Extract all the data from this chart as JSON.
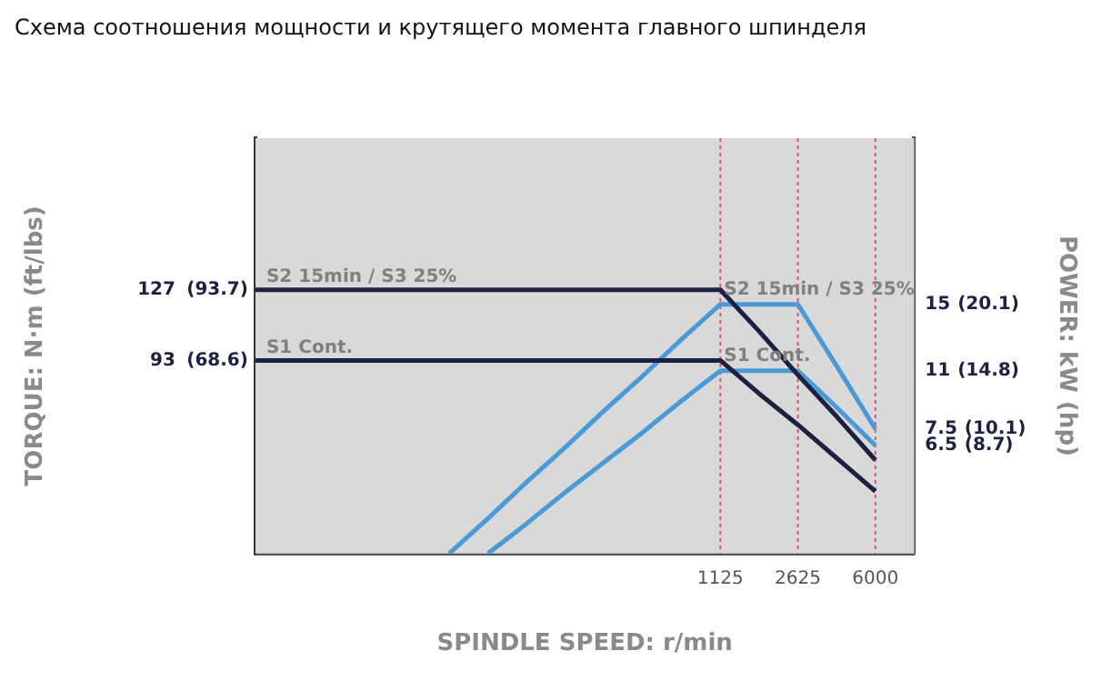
{
  "chart_data": {
    "type": "line",
    "title": "Схема соотношения мощности и крутящего момента главного шпинделя",
    "xlabel": "SPINDLE SPEED: r/min",
    "ylabel": "TORQUE: N·m (ft/lbs)",
    "y2label": "POWER: kW (hp)",
    "categories": [
      null,
      null,
      null,
      null,
      null,
      null,
      null,
      null,
      null,
      null,
      null,
      null,
      "1125",
      null,
      "2625",
      null,
      "6000",
      null
    ],
    "series": [
      {
        "name": "S2 15min / S3 25%",
        "color": "#1b2140",
        "values": [
          127,
          127,
          127,
          127,
          127,
          127,
          127,
          127,
          127,
          127,
          127,
          127,
          127,
          107,
          86,
          66,
          45,
          null
        ]
      },
      {
        "name": "S1 Cont.",
        "color": "#1b2140",
        "values": [
          93,
          93,
          93,
          93,
          93,
          93,
          93,
          93,
          93,
          93,
          93,
          93,
          93,
          77,
          62,
          46,
          30,
          null
        ]
      },
      {
        "name": "S2 15min / S3 25%",
        "color": "#4a9ad6",
        "axis": "y2",
        "values": [
          null,
          null,
          null,
          null,
          null,
          0,
          2.1,
          4.3,
          6.4,
          8.6,
          10.7,
          12.9,
          15,
          15,
          15,
          11.3,
          7.5,
          null
        ]
      },
      {
        "name": "S1 Cont.",
        "color": "#4a9ad6",
        "axis": "y2",
        "values": [
          null,
          null,
          null,
          null,
          null,
          null,
          0,
          1.8,
          3.7,
          5.5,
          7.3,
          9.2,
          11,
          11,
          11,
          8.8,
          6.5,
          null
        ]
      }
    ],
    "ylim": [
      0,
      200
    ],
    "yticks": [
      93,
      127
    ],
    "y2lim": [
      0,
      25
    ],
    "y2ticks": [
      6.5,
      7.5,
      11,
      15
    ],
    "annotations": [
      "(68.6)",
      "(93.7)",
      "(8.7)",
      "(10.1)",
      "(14.8)",
      "(20.1)"
    ],
    "ref_lines": [
      {
        "axis": "x",
        "value": "1125",
        "color": "#e8506a",
        "line_style": "dotted"
      },
      {
        "axis": "x",
        "value": "2625",
        "color": "#e8506a",
        "line_style": "dotted"
      },
      {
        "axis": "x",
        "value": "6000",
        "color": "#e8506a",
        "line_style": "dotted"
      }
    ],
    "legend": false,
    "marker": "none",
    "line_style": "solid"
  }
}
